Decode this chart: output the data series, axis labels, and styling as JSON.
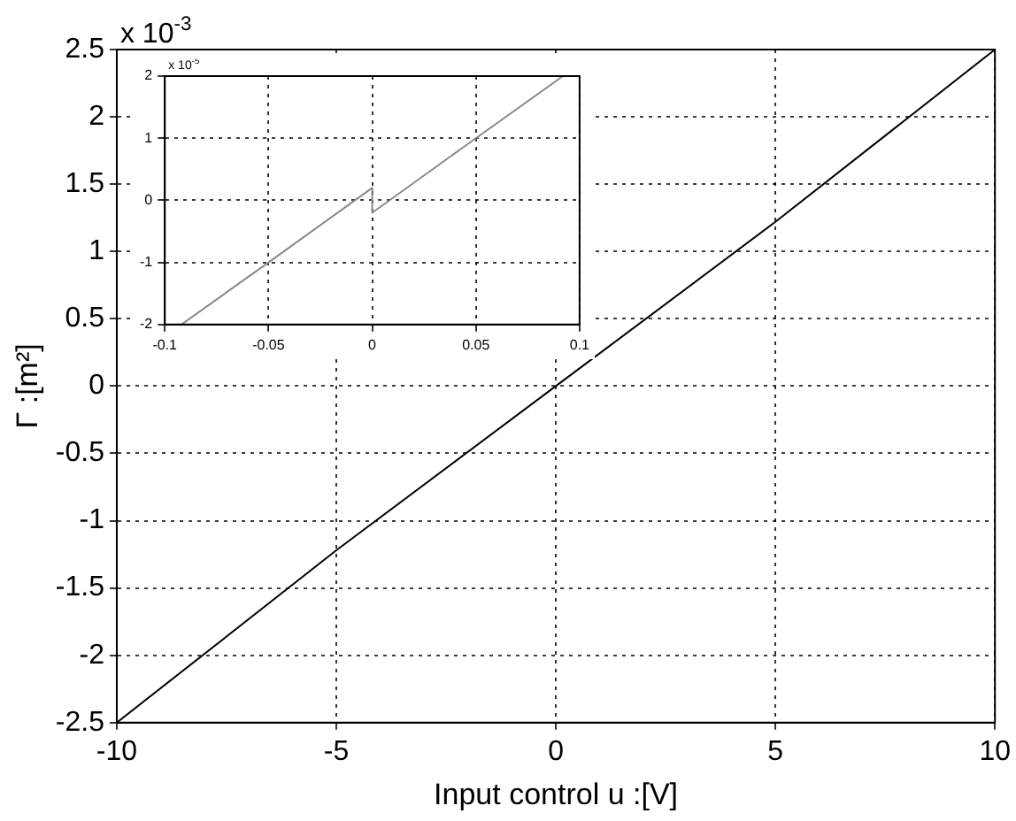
{
  "chart_data": [
    {
      "type": "line",
      "xlabel": "Input control u :[V]",
      "ylabel": "Γ :[m²]",
      "annotations": [
        "x 10$^{-3}$"
      ],
      "x": [
        -10,
        -5,
        0,
        5,
        10
      ],
      "series": [
        {
          "color": "#000000",
          "values": [
            -2.5,
            -1.22,
            0,
            1.22,
            2.5
          ]
        }
      ],
      "xlim": [
        -10,
        10
      ],
      "xticks": [
        -10,
        -5,
        0,
        5,
        10
      ],
      "ylim": [
        -2.5,
        2.5
      ],
      "yticks": [
        -2.5,
        -2,
        -1.5,
        -1,
        -0.5,
        0,
        0.5,
        1,
        1.5,
        2,
        2.5
      ],
      "grid": true,
      "legend": false,
      "line_style": "solid"
    },
    {
      "type": "line",
      "annotations": [
        "x 10$^{-5}$"
      ],
      "x": [
        -0.092,
        -0.05,
        0,
        0,
        0.05,
        0.092
      ],
      "series": [
        {
          "color": "#888888",
          "values": [
            -2,
            -1,
            0.2,
            -0.2,
            1,
            2
          ]
        }
      ],
      "xlim": [
        -0.1,
        0.1
      ],
      "xticks": [
        -0.1,
        -0.05,
        0,
        0.05,
        0.1
      ],
      "ylim": [
        -2,
        2
      ],
      "yticks": [
        -2,
        -1,
        0,
        1,
        2
      ],
      "grid": true,
      "legend": false,
      "line_style": "solid"
    }
  ]
}
